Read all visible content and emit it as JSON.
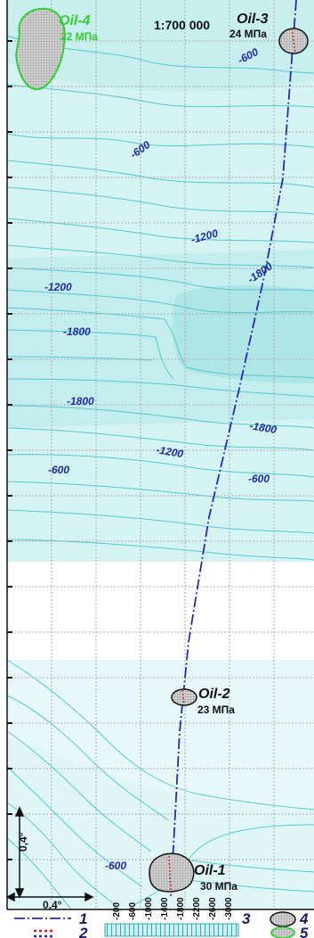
{
  "scale_label": "1:700 000",
  "deposits": [
    {
      "name": "Oil-4",
      "pressure": "22 МПа",
      "color": "#33cc33"
    },
    {
      "name": "Oil-3",
      "pressure": "24 МПа",
      "color": "#111111"
    },
    {
      "name": "Oil-2",
      "pressure": "23 МПа",
      "color": "#111111"
    },
    {
      "name": "Oil-1",
      "pressure": "30 МПа",
      "color": "#111111"
    }
  ],
  "contour_labels": [
    "-600",
    "-600",
    "-1200",
    "-1200",
    "-1800",
    "-1800",
    "-1800",
    "-1800",
    "-1200",
    "-600",
    "-600",
    "-600"
  ],
  "grid_spacing": {
    "vertical": "0,4°",
    "horizontal": "0,4°"
  },
  "legend": {
    "items": [
      "1",
      "2",
      "3",
      "4",
      "5"
    ],
    "depth_scale": [
      "-200",
      "-600",
      "-1000",
      "-1400",
      "-1800",
      "-2200",
      "-2600",
      "-3000"
    ]
  },
  "colors": {
    "contour": "#55c8d2",
    "fill_light": "#e4f7f7",
    "fill_mid": "#c9efee",
    "fill_deep": "#a9e5e3",
    "profile_line": "#2a2aa8",
    "label_blue": "#1f2aa0",
    "deposit_fill": "#c0c0c0"
  }
}
